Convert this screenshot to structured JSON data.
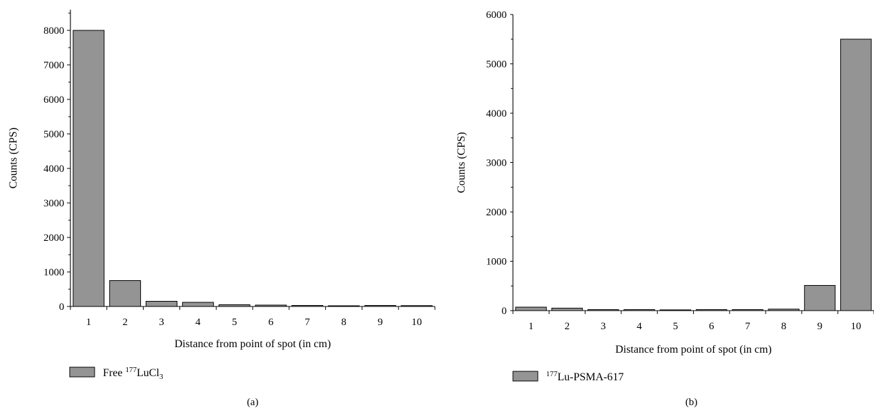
{
  "colors": {
    "bar_fill": "#949494",
    "bar_stroke": "#000000"
  },
  "chart_data": [
    {
      "type": "bar",
      "panel_label": "(a)",
      "categories": [
        "1",
        "2",
        "3",
        "4",
        "5",
        "6",
        "7",
        "8",
        "9",
        "10"
      ],
      "series": [
        {
          "legend": {
            "prefix": "Free ",
            "sup": "177",
            "main": "LuCl",
            "sub": "3"
          },
          "values": [
            8000,
            750,
            150,
            120,
            50,
            40,
            30,
            20,
            30,
            25
          ]
        }
      ],
      "xlabel": "Distance from point of spot (in cm)",
      "ylabel": "Counts (CPS)",
      "ylim": [
        0,
        8600
      ],
      "yticks": [
        0,
        1000,
        2000,
        3000,
        4000,
        5000,
        6000,
        7000,
        8000
      ],
      "grid": false,
      "legend_position": "bottom-left"
    },
    {
      "type": "bar",
      "panel_label": "(b)",
      "categories": [
        "1",
        "2",
        "3",
        "4",
        "5",
        "6",
        "7",
        "8",
        "9",
        "10"
      ],
      "series": [
        {
          "legend": {
            "prefix": "",
            "sup": "177",
            "main": "Lu-PSMA-617",
            "sub": ""
          },
          "values": [
            70,
            50,
            20,
            20,
            15,
            20,
            20,
            30,
            510,
            5500
          ]
        }
      ],
      "xlabel": "Distance from point of spot (in cm)",
      "ylabel": "Counts (CPS)",
      "ylim": [
        0,
        6000
      ],
      "yticks": [
        0,
        1000,
        2000,
        3000,
        4000,
        5000,
        6000
      ],
      "grid": false,
      "legend_position": "bottom-left"
    }
  ]
}
